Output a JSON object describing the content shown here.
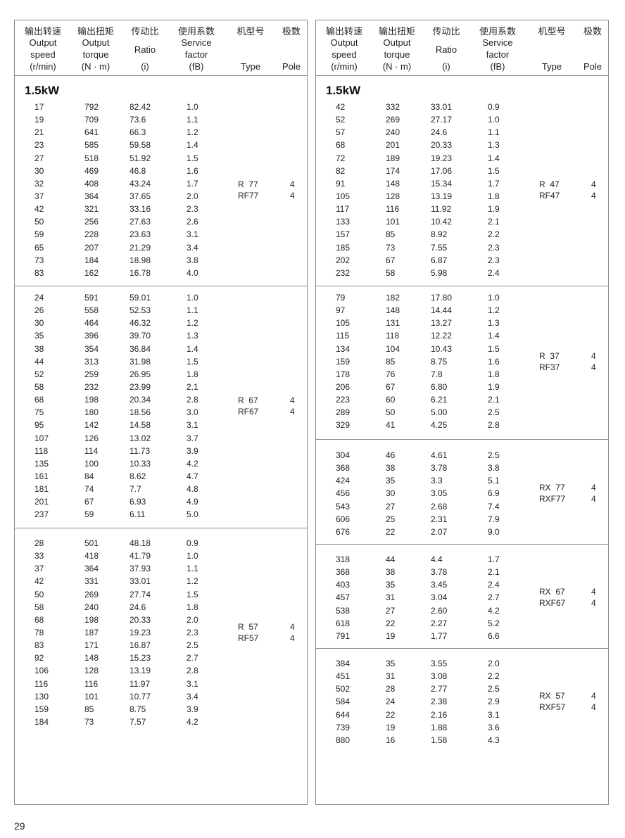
{
  "header": [
    {
      "cn": "输出转速",
      "en": [
        "Output",
        "speed",
        "(r/min)"
      ]
    },
    {
      "cn": "输出扭矩",
      "en": [
        "Output",
        "torque",
        "(N · m)"
      ]
    },
    {
      "cn": "传动比",
      "en": [
        "Ratio",
        "(i)"
      ]
    },
    {
      "cn": "使用系数",
      "en": [
        "Service",
        "factor",
        "(fB)"
      ]
    },
    {
      "cn": "机型号",
      "en": [
        "Type"
      ]
    },
    {
      "cn": "极数",
      "en": [
        "Pole"
      ]
    }
  ],
  "power_label": "1.5kW",
  "panels": [
    {
      "sections": [
        {
          "types": [
            {
              "type": "R  77",
              "pole": "4"
            },
            {
              "type": "RF77",
              "pole": "4"
            }
          ],
          "rows": [
            [
              "17",
              "792",
              "82.42",
              "1.0"
            ],
            [
              "19",
              "709",
              "73.6",
              "1.1"
            ],
            [
              "21",
              "641",
              "66.3",
              "1.2"
            ],
            [
              "23",
              "585",
              "59.58",
              "1.4"
            ],
            [
              "27",
              "518",
              "51.92",
              "1.5"
            ],
            [
              "30",
              "469",
              "46.8",
              "1.6"
            ],
            [
              "32",
              "408",
              "43.24",
              "1.7"
            ],
            [
              "37",
              "364",
              "37.65",
              "2.0"
            ],
            [
              "42",
              "321",
              "33.16",
              "2.3"
            ],
            [
              "50",
              "256",
              "27.63",
              "2.6"
            ],
            [
              "59",
              "228",
              "23.63",
              "3.1"
            ],
            [
              "65",
              "207",
              "21.29",
              "3.4"
            ],
            [
              "73",
              "184",
              "18.98",
              "3.8"
            ],
            [
              "83",
              "162",
              "16.78",
              "4.0"
            ]
          ]
        },
        {
          "types": [
            {
              "type": "R  67",
              "pole": "4"
            },
            {
              "type": "RF67",
              "pole": "4"
            }
          ],
          "rows": [
            [
              "24",
              "591",
              "59.01",
              "1.0"
            ],
            [
              "26",
              "558",
              "52.53",
              "1.1"
            ],
            [
              "30",
              "464",
              "46.32",
              "1.2"
            ],
            [
              "35",
              "396",
              "39.70",
              "1.3"
            ],
            [
              "38",
              "354",
              "36.84",
              "1.4"
            ],
            [
              "44",
              "313",
              "31.98",
              "1.5"
            ],
            [
              "52",
              "259",
              "26.95",
              "1.8"
            ],
            [
              "58",
              "232",
              "23.99",
              "2.1"
            ],
            [
              "68",
              "198",
              "20.34",
              "2.8"
            ],
            [
              "75",
              "180",
              "18.56",
              "3.0"
            ],
            [
              "95",
              "142",
              "14.58",
              "3.1"
            ],
            [
              "107",
              "126",
              "13.02",
              "3.7"
            ],
            [
              "118",
              "114",
              "11.73",
              "3.9"
            ],
            [
              "135",
              "100",
              "10.33",
              "4.2"
            ],
            [
              "161",
              "84",
              "8.62",
              "4.7"
            ],
            [
              "181",
              "74",
              "7.7",
              "4.8"
            ],
            [
              "201",
              "67",
              "6.93",
              "4.9"
            ],
            [
              "237",
              "59",
              "6.11",
              "5.0"
            ]
          ]
        },
        {
          "types": [
            {
              "type": "R  57",
              "pole": "4"
            },
            {
              "type": "RF57",
              "pole": "4"
            }
          ],
          "rows": [
            [
              "28",
              "501",
              "48.18",
              "0.9"
            ],
            [
              "33",
              "418",
              "41.79",
              "1.0"
            ],
            [
              "37",
              "364",
              "37.93",
              "1.1"
            ],
            [
              "42",
              "331",
              "33.01",
              "1.2"
            ],
            [
              "50",
              "269",
              "27.74",
              "1.5"
            ],
            [
              "58",
              "240",
              "24.6",
              "1.8"
            ],
            [
              "68",
              "198",
              "20.33",
              "2.0"
            ],
            [
              "78",
              "187",
              "19.23",
              "2.3"
            ],
            [
              "83",
              "171",
              "16.87",
              "2.5"
            ],
            [
              "92",
              "148",
              "15.23",
              "2.7"
            ],
            [
              "106",
              "128",
              "13.19",
              "2.8"
            ],
            [
              "116",
              "116",
              "11.97",
              "3.1"
            ],
            [
              "130",
              "101",
              "10.77",
              "3.4"
            ],
            [
              "159",
              "85",
              "8.75",
              "3.9"
            ],
            [
              "184",
              "73",
              "7.57",
              "4.2"
            ]
          ]
        }
      ]
    },
    {
      "sections": [
        {
          "types": [
            {
              "type": "R  47",
              "pole": "4"
            },
            {
              "type": "RF47",
              "pole": "4"
            }
          ],
          "rows": [
            [
              "42",
              "332",
              "33.01",
              "0.9"
            ],
            [
              "52",
              "269",
              "27.17",
              "1.0"
            ],
            [
              "57",
              "240",
              "24.6",
              "1.1"
            ],
            [
              "68",
              "201",
              "20.33",
              "1.3"
            ],
            [
              "72",
              "189",
              "19.23",
              "1.4"
            ],
            [
              "82",
              "174",
              "17.06",
              "1.5"
            ],
            [
              "91",
              "148",
              "15.34",
              "1.7"
            ],
            [
              "105",
              "128",
              "13.19",
              "1.8"
            ],
            [
              "117",
              "116",
              "11.92",
              "1.9"
            ],
            [
              "133",
              "101",
              "10.42",
              "2.1"
            ],
            [
              "157",
              "85",
              "8.92",
              "2.2"
            ],
            [
              "185",
              "73",
              "7.55",
              "2.3"
            ],
            [
              "202",
              "67",
              "6.87",
              "2.3"
            ],
            [
              "232",
              "58",
              "5.98",
              "2.4"
            ]
          ]
        },
        {
          "types": [
            {
              "type": "R  37",
              "pole": "4"
            },
            {
              "type": "RF37",
              "pole": "4"
            }
          ],
          "rows": [
            [
              "79",
              "182",
              "17.80",
              "1.0"
            ],
            [
              "97",
              "148",
              "14.44",
              "1.2"
            ],
            [
              "105",
              "131",
              "13.27",
              "1.3"
            ],
            [
              "115",
              "118",
              "12.22",
              "1.4"
            ],
            [
              "134",
              "104",
              "10.43",
              "1.5"
            ],
            [
              "159",
              "85",
              "8.75",
              "1.6"
            ],
            [
              "178",
              "76",
              "7.8",
              "1.8"
            ],
            [
              "206",
              "67",
              "6.80",
              "1.9"
            ],
            [
              "223",
              "60",
              "6.21",
              "2.1"
            ],
            [
              "289",
              "50",
              "5.00",
              "2.5"
            ],
            [
              "329",
              "41",
              "4.25",
              "2.8"
            ]
          ]
        },
        {
          "types": [
            {
              "type": "RX  77",
              "pole": "4"
            },
            {
              "type": "RXF77",
              "pole": "4"
            }
          ],
          "rows": [
            [
              "304",
              "46",
              "4.61",
              "2.5"
            ],
            [
              "368",
              "38",
              "3.78",
              "3.8"
            ],
            [
              "424",
              "35",
              "3.3",
              "5.1"
            ],
            [
              "456",
              "30",
              "3.05",
              "6.9"
            ],
            [
              "543",
              "27",
              "2.68",
              "7.4"
            ],
            [
              "606",
              "25",
              "2.31",
              "7.9"
            ],
            [
              "676",
              "22",
              "2.07",
              "9.0"
            ]
          ]
        },
        {
          "types": [
            {
              "type": "RX  67",
              "pole": "4"
            },
            {
              "type": "RXF67",
              "pole": "4"
            }
          ],
          "rows": [
            [
              "318",
              "44",
              "4.4",
              "1.7"
            ],
            [
              "368",
              "38",
              "3.78",
              "2.1"
            ],
            [
              "403",
              "35",
              "3.45",
              "2.4"
            ],
            [
              "457",
              "31",
              "3.04",
              "2.7"
            ],
            [
              "538",
              "27",
              "2.60",
              "4.2"
            ],
            [
              "618",
              "22",
              "2.27",
              "5.2"
            ],
            [
              "791",
              "19",
              "1.77",
              "6.6"
            ]
          ]
        },
        {
          "types": [
            {
              "type": "RX  57",
              "pole": "4"
            },
            {
              "type": "RXF57",
              "pole": "4"
            }
          ],
          "rows": [
            [
              "384",
              "35",
              "3.55",
              "2.0"
            ],
            [
              "451",
              "31",
              "3.08",
              "2.2"
            ],
            [
              "502",
              "28",
              "2.77",
              "2.5"
            ],
            [
              "584",
              "24",
              "2.38",
              "2.9"
            ],
            [
              "644",
              "22",
              "2.16",
              "3.1"
            ],
            [
              "739",
              "19",
              "1.88",
              "3.6"
            ],
            [
              "880",
              "16",
              "1.58",
              "4.3"
            ]
          ]
        }
      ]
    }
  ],
  "page_number": "29"
}
